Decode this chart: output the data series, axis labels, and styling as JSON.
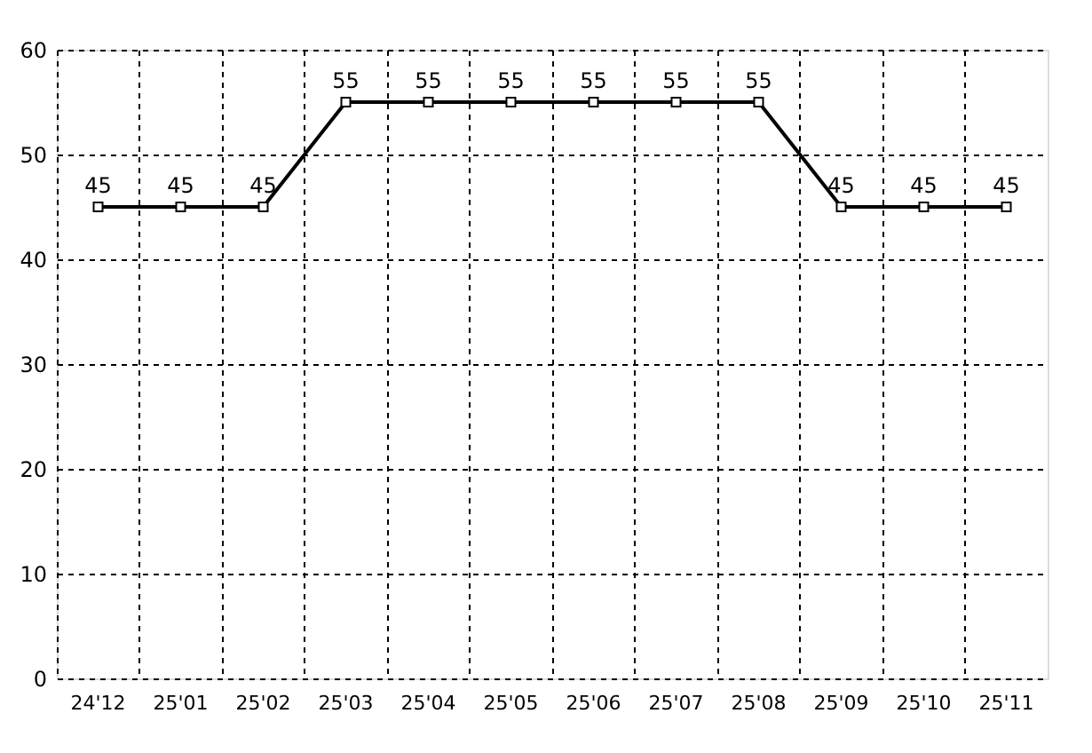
{
  "chart_data": {
    "type": "line",
    "categories": [
      "24'12",
      "25'01",
      "25'02",
      "25'03",
      "25'04",
      "25'05",
      "25'06",
      "25'07",
      "25'08",
      "25'09",
      "25'10",
      "25'11"
    ],
    "series": [
      {
        "color": "#000000",
        "values": [
          45,
          45,
          45,
          55,
          55,
          55,
          55,
          55,
          55,
          45,
          45,
          45
        ]
      }
    ],
    "ylim": [
      0,
      60
    ],
    "yticks": [
      0,
      10,
      20,
      30,
      40,
      50,
      60
    ],
    "grid": true,
    "marker": "square",
    "line_style": "solid",
    "data_labels": true
  }
}
